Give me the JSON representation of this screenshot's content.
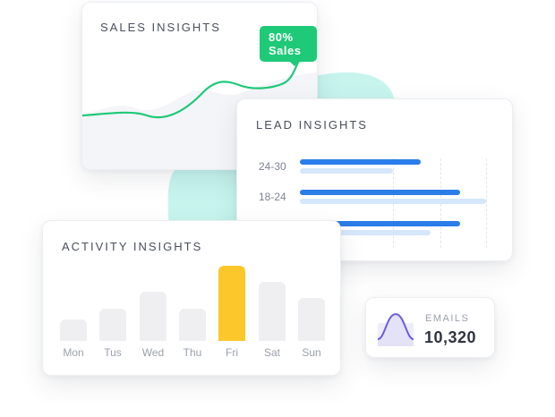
{
  "colors": {
    "green_accent": "#1ec978",
    "blue_bar": "#2b7de9",
    "light_blue_bar": "#d6e7fb",
    "yellow_highlight": "#fcc72b",
    "mint_blob": "#c7f5ee",
    "purple_icon": "#6e5ce0"
  },
  "sales": {
    "title": "SALES INSIGHTS",
    "badge": "80% Sales"
  },
  "lead": {
    "title": "LEAD INSIGHTS",
    "rows": [
      {
        "label": "24-30",
        "primary": 0.65,
        "secondary": 0.5
      },
      {
        "label": "18-24",
        "primary": 0.86,
        "secondary": 1.0
      },
      {
        "label": "",
        "primary": 0.86,
        "secondary": 0.7
      }
    ]
  },
  "activity": {
    "title": "ACTIVITY INSIGHTS",
    "days": [
      "Mon",
      "Tus",
      "Wed",
      "Thu",
      "Fri",
      "Sat",
      "Sun"
    ],
    "levels": [
      0.29,
      0.43,
      0.65,
      0.43,
      1.0,
      0.78,
      0.57
    ],
    "highlighted": "Fri"
  },
  "emails": {
    "label": "EMAILS",
    "value": "10,320",
    "icon": "bell-curve-icon"
  }
}
